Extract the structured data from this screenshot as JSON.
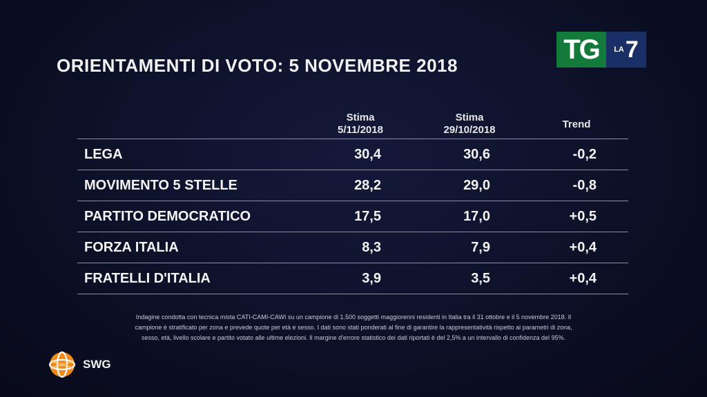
{
  "title": "ORIENTAMENTI DI VOTO: 5 NOVEMBRE 2018",
  "logo": {
    "tg": "TG",
    "la": "LA",
    "seven": "7"
  },
  "columns": {
    "col1_line1": "Stima",
    "col1_line2": "5/11/2018",
    "col2_line1": "Stima",
    "col2_line2": "29/10/2018",
    "col3": "Trend"
  },
  "rows": [
    {
      "party": "LEGA",
      "stima1": "30,4",
      "stima2": "30,6",
      "trend": "-0,2"
    },
    {
      "party": "MOVIMENTO 5 STELLE",
      "stima1": "28,2",
      "stima2": "29,0",
      "trend": "-0,8"
    },
    {
      "party": "PARTITO DEMOCRATICO",
      "stima1": "17,5",
      "stima2": "17,0",
      "trend": "+0,5"
    },
    {
      "party": "FORZA ITALIA",
      "stima1": "8,3",
      "stima2": "7,9",
      "trend": "+0,4"
    },
    {
      "party": "FRATELLI D'ITALIA",
      "stima1": "3,9",
      "stima2": "3,5",
      "trend": "+0,4"
    }
  ],
  "footnote": {
    "line1": "Indagine condotta con tecnica mista CATI-CAMI-CAWI su un campione di 1.500 soggetti maggiorenni residenti in Italia tra il 31 ottobre e il 5 novembre 2018. Il",
    "line2": "campione è stratificato per zona e prevede quote per età e sesso. I dati sono stati ponderati al fine di garantire la rappresentatività rispetto ai parametri di zona,",
    "line3": "sesso, età, livello scolare e partito votato alle ultime elezioni. Il margine d'errore statistico dei dati riportati è del 2,5% a un intervallo di confidenza del 95%."
  },
  "brand": {
    "name": "SWG"
  },
  "colors": {
    "background": "#0c1026",
    "tg_green": "#137a3b",
    "la7_blue": "#1a2f66",
    "swg_orange": "#f08a1c"
  }
}
